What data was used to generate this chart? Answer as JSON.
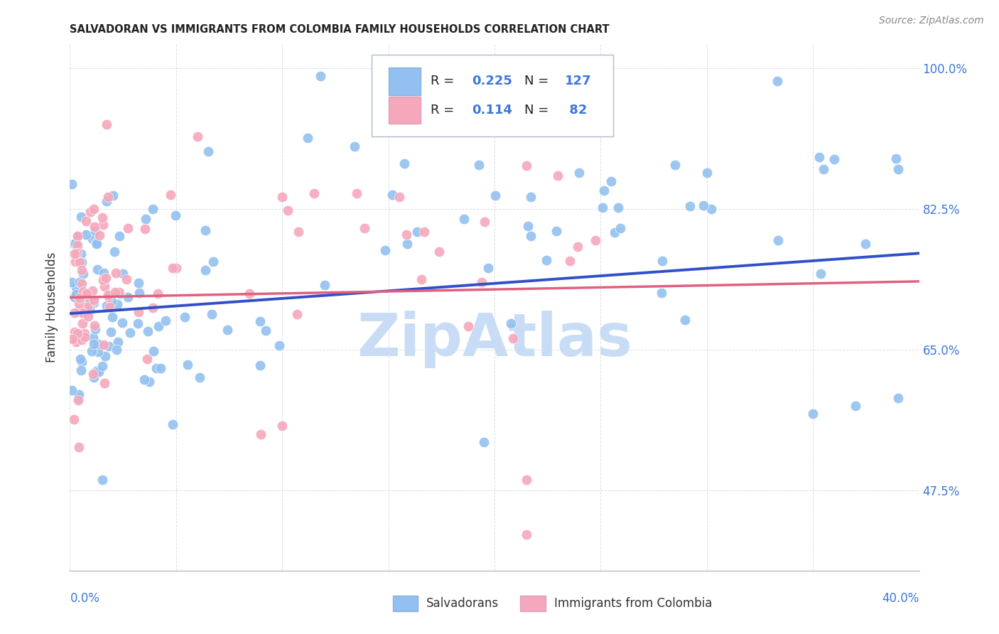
{
  "title": "SALVADORAN VS IMMIGRANTS FROM COLOMBIA FAMILY HOUSEHOLDS CORRELATION CHART",
  "source": "Source: ZipAtlas.com",
  "ylabel": "Family Households",
  "right_ytick_vals": [
    0.475,
    0.65,
    0.825,
    1.0
  ],
  "right_ytick_labels": [
    "47.5%",
    "65.0%",
    "82.5%",
    "100.0%"
  ],
  "xmin": 0.0,
  "xmax": 0.4,
  "ymin": 0.375,
  "ymax": 1.03,
  "blue_R": 0.225,
  "blue_N": 127,
  "pink_R": 0.114,
  "pink_N": 82,
  "legend_blue_label": "Salvadorans",
  "legend_pink_label": "Immigrants from Colombia",
  "scatter_blue_color": "#92c0f0",
  "scatter_pink_color": "#f5a8bc",
  "line_blue_color": "#3050c8",
  "line_pink_color": "#e06080",
  "watermark_color": "#c8ddf5",
  "axis_label_color": "#3c78d8",
  "grid_color": "#d8dde8",
  "title_color": "#222222",
  "source_color": "#888888"
}
